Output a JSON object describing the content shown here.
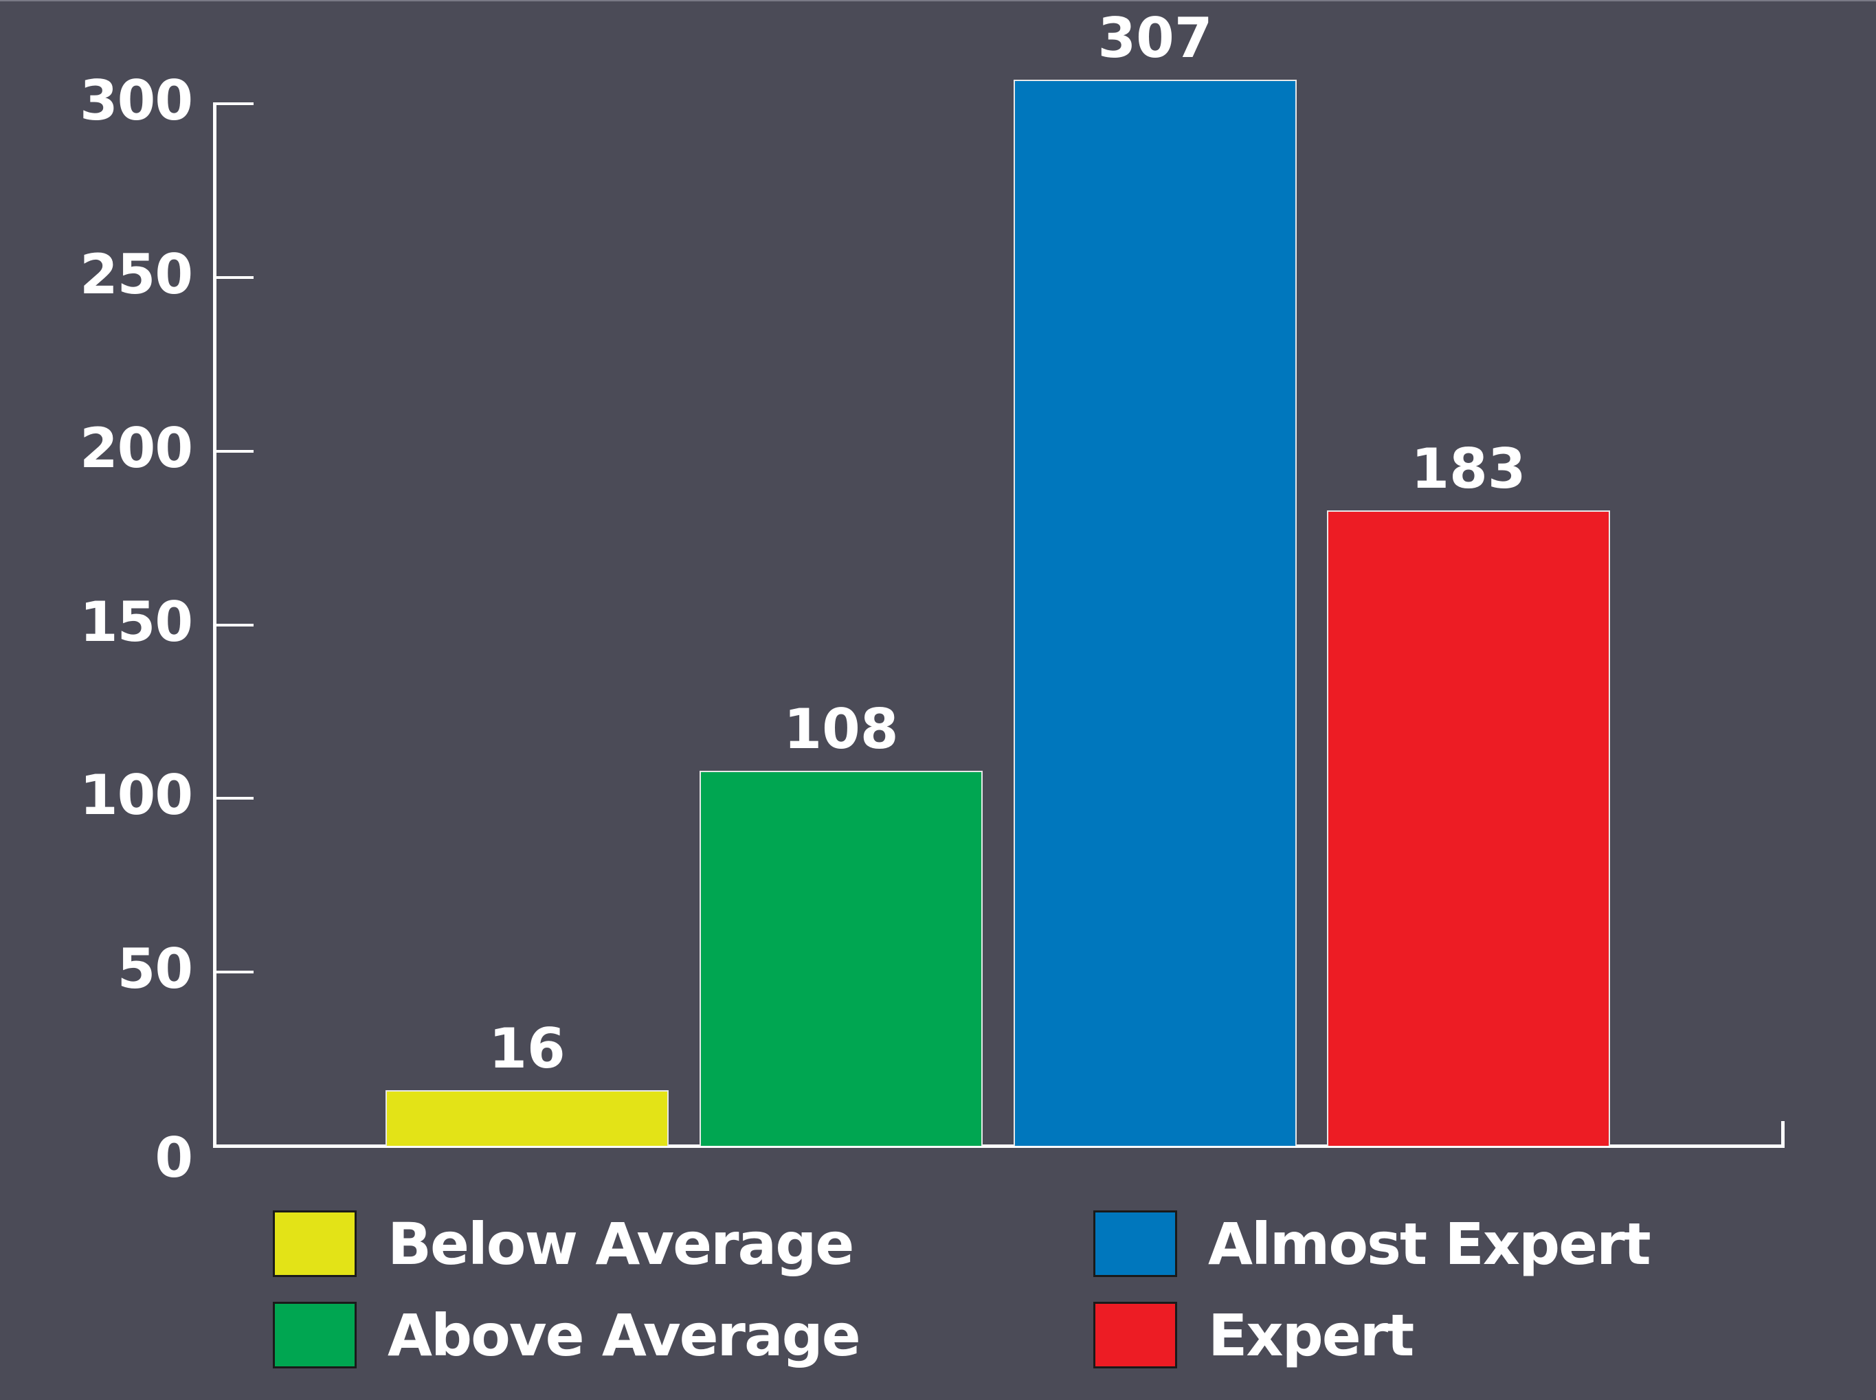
{
  "chart_data": {
    "type": "bar",
    "title": "",
    "xlabel": "",
    "ylabel": "",
    "categories": [
      "Below Average",
      "Above Average",
      "Almost Expert",
      "Expert"
    ],
    "values": [
      16,
      108,
      307,
      183
    ],
    "colors": [
      "#e3e317",
      "#00a651",
      "#0077bd",
      "#ed1c24"
    ],
    "data_labels": [
      "16",
      "108",
      "307",
      "183"
    ],
    "ylim": [
      0,
      300
    ],
    "yticks": [
      0,
      50,
      100,
      150,
      200,
      250,
      300
    ],
    "ytick_labels": [
      "0",
      "50",
      "100",
      "150",
      "200",
      "250",
      "300"
    ],
    "grid": false,
    "legend_position": "bottom",
    "legend": [
      "Below Average",
      "Above Average",
      "Almost Expert",
      "Expert"
    ]
  },
  "style": {
    "background": "#4b4b57",
    "axis_color": "#ffffff",
    "text_color": "#ffffff"
  },
  "legend": {
    "items": [
      {
        "label": "Below Average",
        "color": "#e3e317"
      },
      {
        "label": "Above Average",
        "color": "#00a651"
      },
      {
        "label": "Almost Expert",
        "color": "#0077bd"
      },
      {
        "label": "Expert",
        "color": "#ed1c24"
      }
    ]
  }
}
